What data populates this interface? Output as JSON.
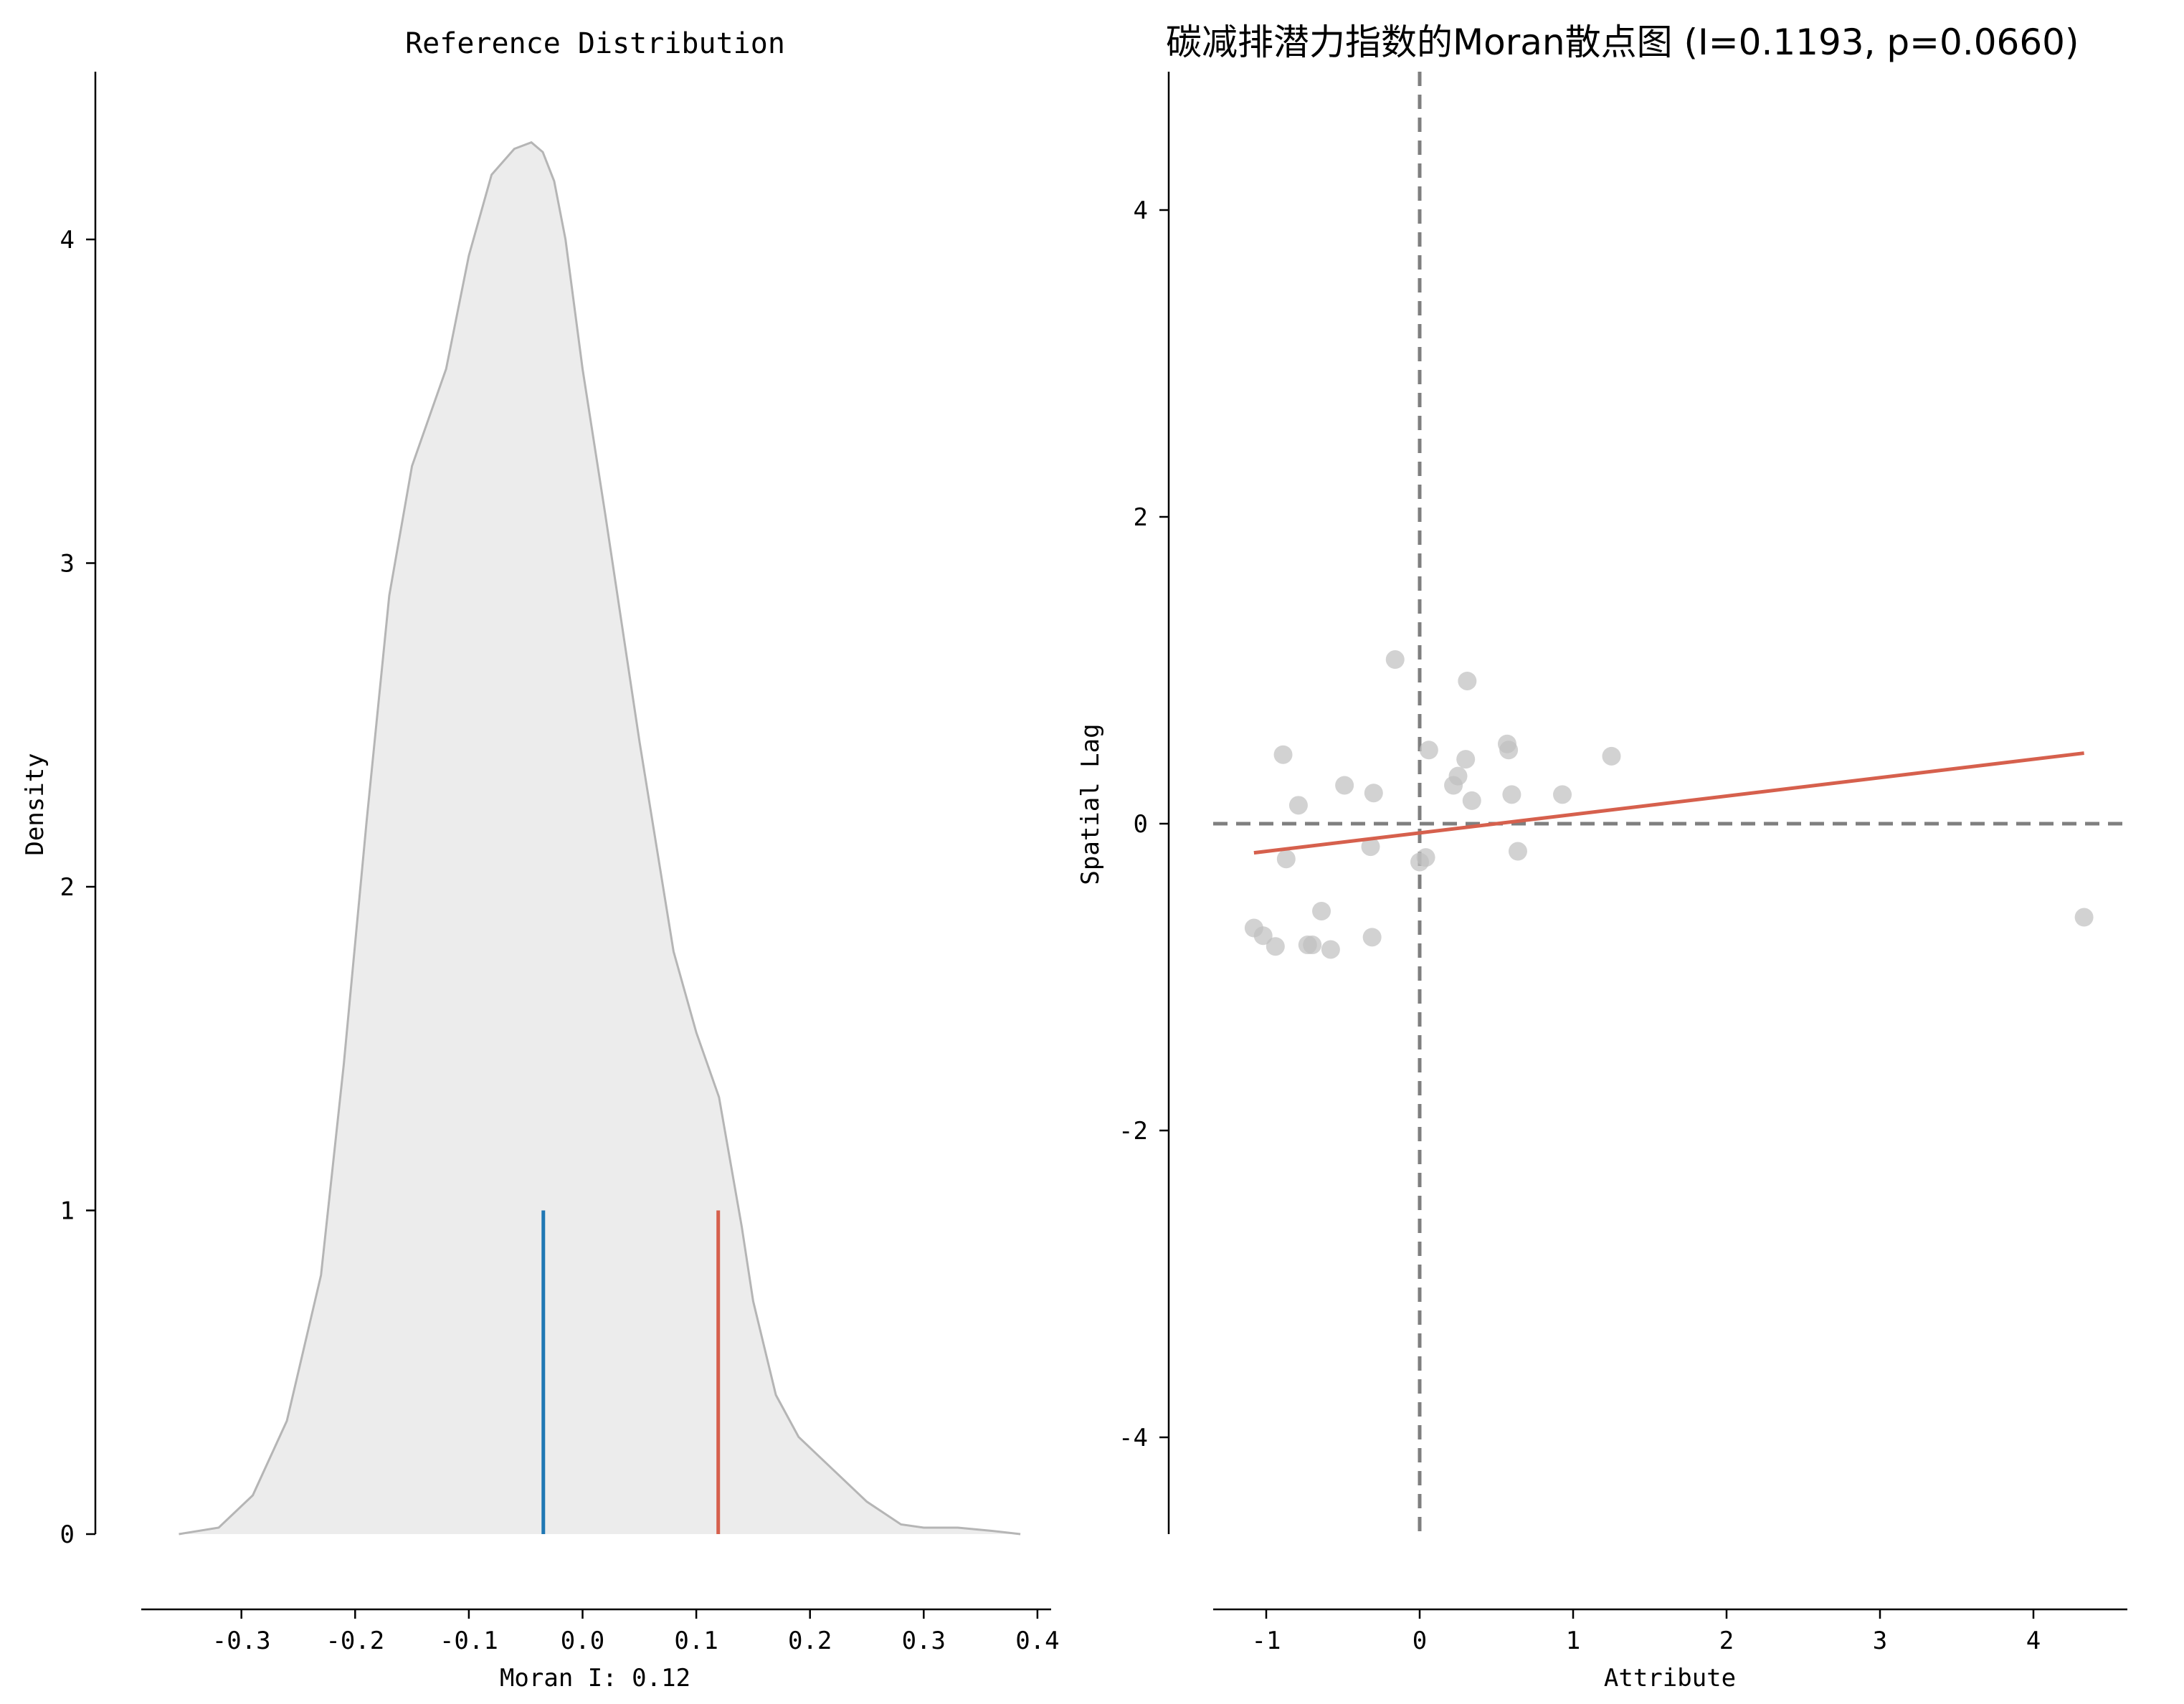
{
  "chart_data": [
    {
      "type": "area",
      "title": "Reference Distribution",
      "xlabel": "Moran I: 0.12",
      "ylabel": "Density",
      "xlim": [
        -0.385,
        0.415
      ],
      "ylim": [
        0,
        4.5
      ],
      "xticks": [
        -0.3,
        -0.2,
        -0.1,
        0.0,
        0.1,
        0.2,
        0.3,
        0.4
      ],
      "xtick_labels": [
        "-0.3",
        "-0.2",
        "-0.1",
        "0.0",
        "0.1",
        "0.2",
        "0.3",
        "0.4"
      ],
      "yticks": [
        0,
        1,
        2,
        3,
        4
      ],
      "ytick_labels": [
        "0",
        "1",
        "2",
        "3",
        "4"
      ],
      "density_curve": {
        "x": [
          -0.355,
          -0.32,
          -0.29,
          -0.26,
          -0.23,
          -0.21,
          -0.19,
          -0.17,
          -0.15,
          -0.12,
          -0.1,
          -0.08,
          -0.06,
          -0.045,
          -0.035,
          -0.025,
          -0.015,
          0.0,
          0.02,
          0.05,
          0.08,
          0.1,
          0.12,
          0.14,
          0.15,
          0.17,
          0.19,
          0.22,
          0.25,
          0.28,
          0.3,
          0.33,
          0.36,
          0.385
        ],
        "y": [
          0.0,
          0.02,
          0.12,
          0.35,
          0.8,
          1.45,
          2.2,
          2.9,
          3.3,
          3.6,
          3.95,
          4.2,
          4.28,
          4.3,
          4.27,
          4.18,
          4.0,
          3.6,
          3.15,
          2.45,
          1.8,
          1.55,
          1.35,
          0.95,
          0.72,
          0.43,
          0.3,
          0.2,
          0.1,
          0.03,
          0.02,
          0.02,
          0.01,
          0.0
        ],
        "fill": "#ececec",
        "stroke": "#b5b5b5"
      },
      "reference_lines": [
        {
          "x": -0.0345,
          "y0": 0,
          "y1": 1,
          "color": "#1f77b4"
        },
        {
          "x": 0.1193,
          "y0": 0,
          "y1": 1,
          "color": "#d6604d"
        }
      ]
    },
    {
      "type": "scatter",
      "title": "碳减排潜力指数的Moran散点图 (I=0.1193, p=0.0660)",
      "xlabel": "Attribute",
      "ylabel": "Spatial Lag",
      "xlim": [
        -1.45,
        4.6
      ],
      "ylim": [
        -4.8,
        4.8
      ],
      "xticks": [
        -1,
        0,
        1,
        2,
        3,
        4
      ],
      "xtick_labels": [
        "-1",
        "0",
        "1",
        "2",
        "3",
        "4"
      ],
      "yticks": [
        -4,
        -2,
        0,
        2,
        4
      ],
      "ytick_labels": [
        "-4",
        "-2",
        "0",
        "2",
        "4"
      ],
      "points": [
        {
          "x": -0.16,
          "y": 1.07
        },
        {
          "x": 0.31,
          "y": 0.93
        },
        {
          "x": -0.89,
          "y": 0.45
        },
        {
          "x": 0.57,
          "y": 0.52
        },
        {
          "x": 0.58,
          "y": 0.48
        },
        {
          "x": 1.25,
          "y": 0.44
        },
        {
          "x": 0.06,
          "y": 0.48
        },
        {
          "x": 0.3,
          "y": 0.42
        },
        {
          "x": 0.25,
          "y": 0.31
        },
        {
          "x": 0.22,
          "y": 0.25
        },
        {
          "x": -0.49,
          "y": 0.25
        },
        {
          "x": -0.3,
          "y": 0.2
        },
        {
          "x": 0.6,
          "y": 0.19
        },
        {
          "x": 0.93,
          "y": 0.19
        },
        {
          "x": 0.34,
          "y": 0.15
        },
        {
          "x": -0.79,
          "y": 0.12
        },
        {
          "x": -0.32,
          "y": -0.15
        },
        {
          "x": 0.64,
          "y": -0.18
        },
        {
          "x": -0.87,
          "y": -0.23
        },
        {
          "x": 0.04,
          "y": -0.22
        },
        {
          "x": 0.0,
          "y": -0.25
        },
        {
          "x": -0.64,
          "y": -0.57
        },
        {
          "x": -1.08,
          "y": -0.68
        },
        {
          "x": -1.02,
          "y": -0.73
        },
        {
          "x": -0.31,
          "y": -0.74
        },
        {
          "x": -0.94,
          "y": -0.8
        },
        {
          "x": -0.73,
          "y": -0.79
        },
        {
          "x": -0.7,
          "y": -0.79
        },
        {
          "x": -0.58,
          "y": -0.82
        },
        {
          "x": 4.33,
          "y": -0.61
        }
      ],
      "point_color": "#bfbfbf",
      "fit_line": {
        "x": [
          -1.08,
          4.33
        ],
        "y": [
          -0.19,
          0.46
        ],
        "color": "#d6604d"
      },
      "reference_lines": {
        "x0": 0,
        "y0": 0,
        "color": "#7f7f7f",
        "style": "dashed"
      }
    }
  ]
}
